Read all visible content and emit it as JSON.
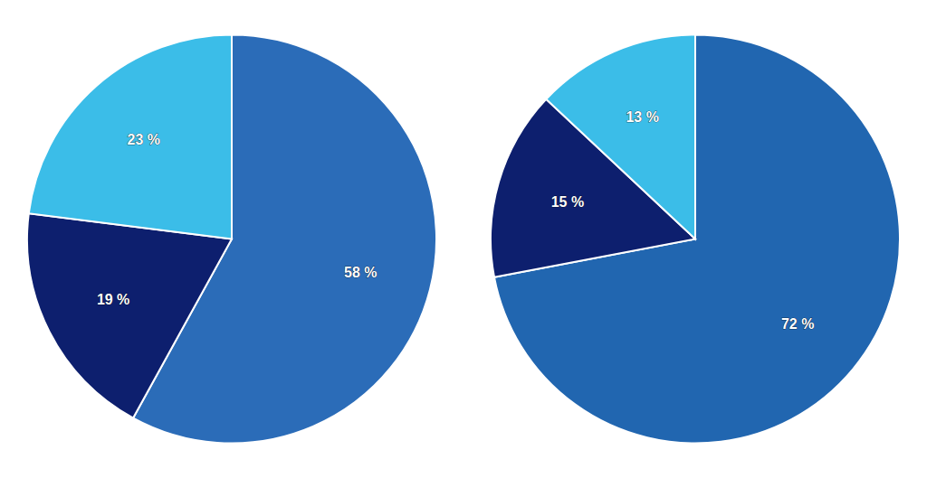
{
  "chart_data": [
    {
      "type": "pie",
      "values": [
        58,
        19,
        23
      ],
      "value_labels": [
        "58 %",
        "19 %",
        "23 %"
      ],
      "colors": [
        "#2B6CB8",
        "#0D1F6E",
        "#3BBDE8"
      ],
      "data_labels": true
    },
    {
      "type": "pie",
      "values": [
        72,
        15,
        13
      ],
      "value_labels": [
        "72 %",
        "15 %",
        "13 %"
      ],
      "colors": [
        "#2166B0",
        "#0D1F6E",
        "#3BBDE8"
      ],
      "data_labels": true
    }
  ]
}
